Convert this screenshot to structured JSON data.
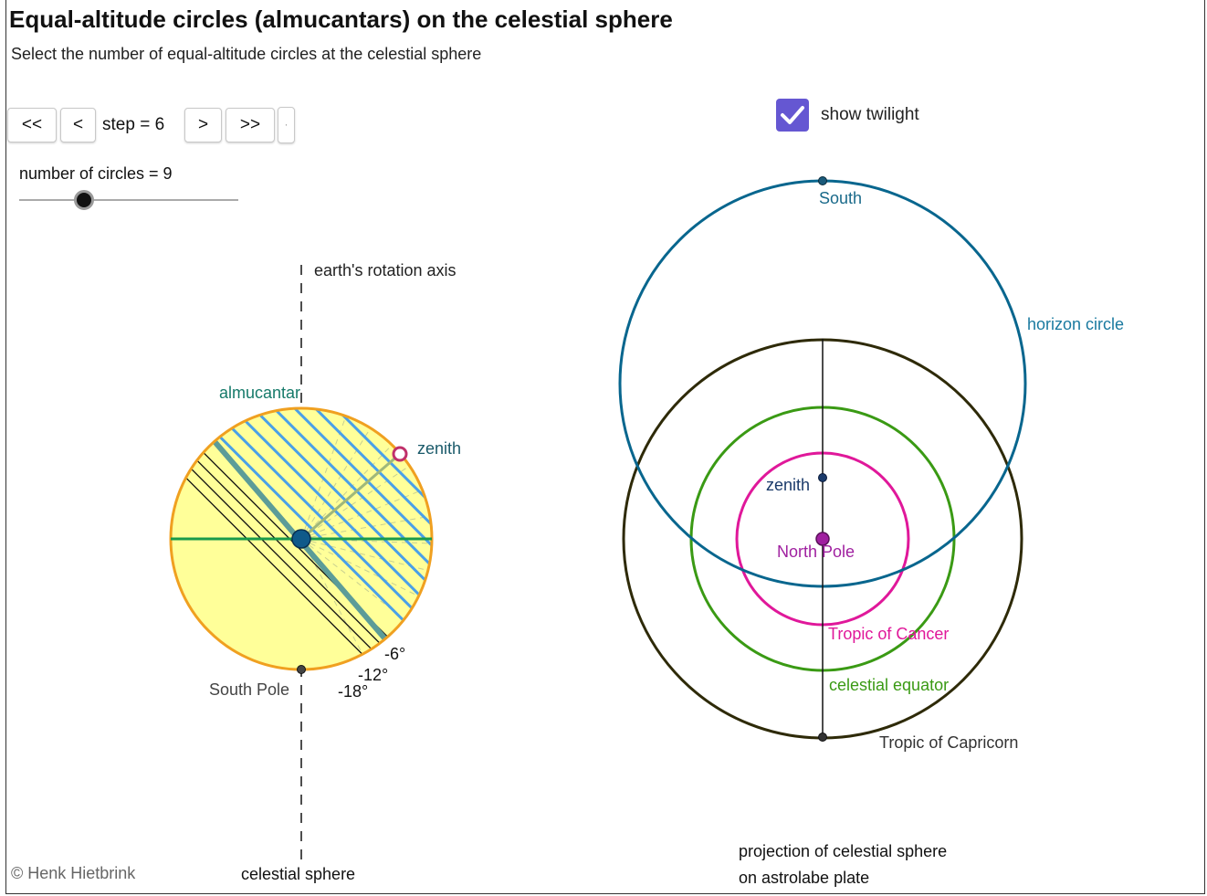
{
  "title": "Equal-altitude circles (almucantars) on the celestial sphere",
  "subtitle": "Select the number of equal-altitude circles at the celestial sphere",
  "controls": {
    "first_label": "<<",
    "prev_label": "<",
    "step_text": "step = 6",
    "next_label": ">",
    "last_label": ">>",
    "extra_label": "·",
    "circles_text": "number of circles = 9",
    "circles_value": 9,
    "twilight_label": "show twilight",
    "twilight_checked": true
  },
  "left_diagram": {
    "axis_label": "earth's rotation axis",
    "almucantar_label": "almucantar",
    "zenith_label": "zenith",
    "south_pole_label": "South Pole",
    "deg6": "-6°",
    "deg12": "-12°",
    "deg18": "-18°",
    "sphere_label": "celestial sphere"
  },
  "right_diagram": {
    "south_label": "South",
    "horizon_label": "horizon circle",
    "zenith_label": "zenith",
    "north_pole_label": "North Pole",
    "cancer_label": "Tropic of Cancer",
    "equator_label": "celestial equator",
    "capricorn_label": "Tropic of Capricorn",
    "projection_line1": "projection of celestial sphere",
    "projection_line2": "on astrolabe plate"
  },
  "colors": {
    "sphere_fill": "#ffff99",
    "sphere_outline": "#f0a020",
    "almucantar_line": "#4aa0e8",
    "twilight_line": "#111111",
    "horizon": "#60a0a0",
    "equator_line": "#1a9a4a",
    "pole_dot": "#0f5a8a",
    "zenith_ring": "#c0306a",
    "horizon_circle": "#08668e",
    "capricorn_circle": "#2e2a08",
    "equator_circle": "#3a9a14",
    "cancer_circle": "#e0189a",
    "north_pole_dot": "#a020a0",
    "checkbox": "#6557d2"
  }
}
